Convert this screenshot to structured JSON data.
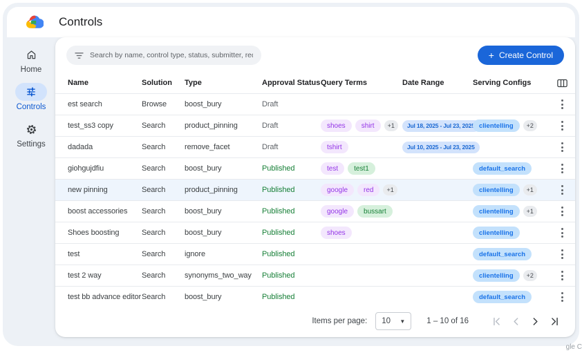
{
  "page": {
    "title": "Controls"
  },
  "sidebar": {
    "items": [
      {
        "label": "Home",
        "icon": "home-icon",
        "active": false
      },
      {
        "label": "Controls",
        "icon": "tune-icon",
        "active": true
      },
      {
        "label": "Settings",
        "icon": "gear-icon",
        "active": false
      }
    ]
  },
  "toolbar": {
    "search_placeholder": "Search by name, control type, status, submitter, requested on",
    "create_label": "Create Control",
    "create_plus": "+"
  },
  "table": {
    "columns": [
      "Name",
      "Solution",
      "Type",
      "Approval Status",
      "Query Terms",
      "Date Range",
      "Serving Configs"
    ],
    "rows": [
      {
        "name": "est search",
        "solution": "Browse",
        "type": "boost_bury",
        "status": {
          "label": "Draft",
          "variant": "draft"
        },
        "query_terms": [],
        "date_range": "",
        "serving_configs": [],
        "highlighted": false
      },
      {
        "name": "test_ss3 copy",
        "solution": "Search",
        "type": "product_pinning",
        "status": {
          "label": "Draft",
          "variant": "draft"
        },
        "query_terms": [
          {
            "text": "shoes",
            "variant": "purple"
          },
          {
            "text": "shirt",
            "variant": "purple"
          },
          {
            "text": "+1",
            "variant": "gray"
          }
        ],
        "date_range": "Jul 18, 2025 - Jul 23, 2025",
        "serving_configs": [
          {
            "text": "clientelling",
            "variant": "blue"
          },
          {
            "text": "+2",
            "variant": "gray"
          }
        ],
        "highlighted": false
      },
      {
        "name": "dadada",
        "solution": "Search",
        "type": "remove_facet",
        "status": {
          "label": "Draft",
          "variant": "draft"
        },
        "query_terms": [
          {
            "text": "tshirt",
            "variant": "purple"
          }
        ],
        "date_range": "Jul 10, 2025 - Jul 23, 2025",
        "serving_configs": [],
        "highlighted": false
      },
      {
        "name": "giohgujdfiu",
        "solution": "Search",
        "type": "boost_bury",
        "status": {
          "label": "Published",
          "variant": "published"
        },
        "query_terms": [
          {
            "text": "test",
            "variant": "purple"
          },
          {
            "text": "test1",
            "variant": "green"
          }
        ],
        "date_range": "",
        "serving_configs": [
          {
            "text": "default_search",
            "variant": "blue"
          }
        ],
        "highlighted": false
      },
      {
        "name": "new pinning",
        "solution": "Search",
        "type": "product_pinning",
        "status": {
          "label": "Published",
          "variant": "published"
        },
        "query_terms": [
          {
            "text": "google",
            "variant": "purple"
          },
          {
            "text": "red",
            "variant": "purple"
          },
          {
            "text": "+1",
            "variant": "gray"
          }
        ],
        "date_range": "",
        "serving_configs": [
          {
            "text": "clientelling",
            "variant": "blue"
          },
          {
            "text": "+1",
            "variant": "gray"
          }
        ],
        "highlighted": true
      },
      {
        "name": "boost accessories",
        "solution": "Search",
        "type": "boost_bury",
        "status": {
          "label": "Published",
          "variant": "published"
        },
        "query_terms": [
          {
            "text": "google",
            "variant": "purple"
          },
          {
            "text": "bussart",
            "variant": "green"
          }
        ],
        "date_range": "",
        "serving_configs": [
          {
            "text": "clientelling",
            "variant": "blue"
          },
          {
            "text": "+1",
            "variant": "gray"
          }
        ],
        "highlighted": false
      },
      {
        "name": "Shoes boosting",
        "solution": "Search",
        "type": "boost_bury",
        "status": {
          "label": "Published",
          "variant": "published"
        },
        "query_terms": [
          {
            "text": "shoes",
            "variant": "purple"
          }
        ],
        "date_range": "",
        "serving_configs": [
          {
            "text": "clientelling",
            "variant": "blue"
          }
        ],
        "highlighted": false
      },
      {
        "name": "test",
        "solution": "Search",
        "type": "ignore",
        "status": {
          "label": "Published",
          "variant": "published"
        },
        "query_terms": [],
        "date_range": "",
        "serving_configs": [
          {
            "text": "default_search",
            "variant": "blue"
          }
        ],
        "highlighted": false
      },
      {
        "name": "test 2 way",
        "solution": "Search",
        "type": "synonyms_two_way",
        "status": {
          "label": "Published",
          "variant": "published"
        },
        "query_terms": [],
        "date_range": "",
        "serving_configs": [
          {
            "text": "clientelling",
            "variant": "blue"
          },
          {
            "text": "+2",
            "variant": "gray"
          }
        ],
        "highlighted": false
      },
      {
        "name": "test bb advance editor",
        "solution": "Search",
        "type": "boost_bury",
        "status": {
          "label": "Published",
          "variant": "published"
        },
        "query_terms": [],
        "date_range": "",
        "serving_configs": [
          {
            "text": "default_search",
            "variant": "blue"
          }
        ],
        "highlighted": false
      }
    ]
  },
  "pagination": {
    "items_per_page_label": "Items per page:",
    "page_size": "10",
    "range": "1 – 10 of 16"
  },
  "colors": {
    "accent_blue": "#1a66d9",
    "active_pill": "#d2e3fc",
    "published_green": "#188038",
    "draft_gray": "#5f6368",
    "chip_purple_text": "#9334e6",
    "chip_green_text": "#188038",
    "chip_blue_text": "#1a73e8",
    "date_chip_text": "#1967d2",
    "window_bg": "#edf1f6"
  },
  "watermark": "gle C"
}
